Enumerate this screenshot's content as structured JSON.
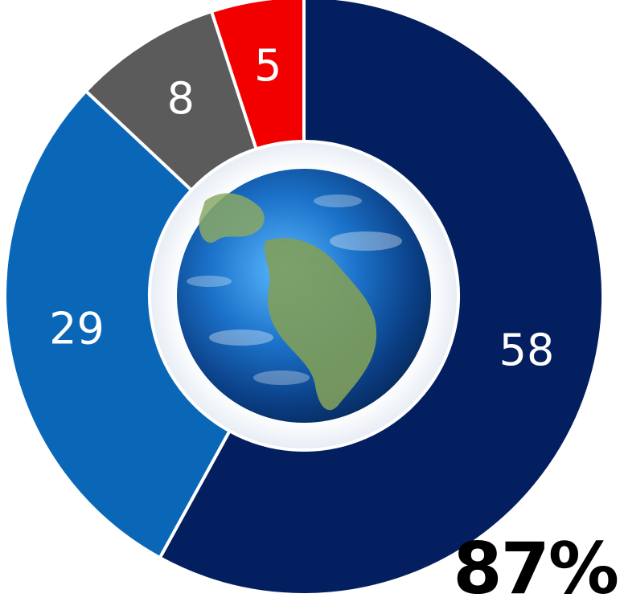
{
  "chart_data": {
    "type": "pie",
    "variant": "donut",
    "categories": [
      "58",
      "29",
      "8",
      "5"
    ],
    "values": [
      58,
      29,
      8,
      5
    ],
    "labels": [
      "58",
      "29",
      "8",
      "5"
    ],
    "colors": [
      "#041f5f",
      "#0a67b8",
      "#5b5b5b",
      "#f20000"
    ],
    "start_angle_deg": 0,
    "direction": "clockwise",
    "center_image": "globe-icon",
    "title": "",
    "xlabel": "",
    "ylabel": "",
    "legend": "none"
  },
  "callout": {
    "text": "87%"
  }
}
